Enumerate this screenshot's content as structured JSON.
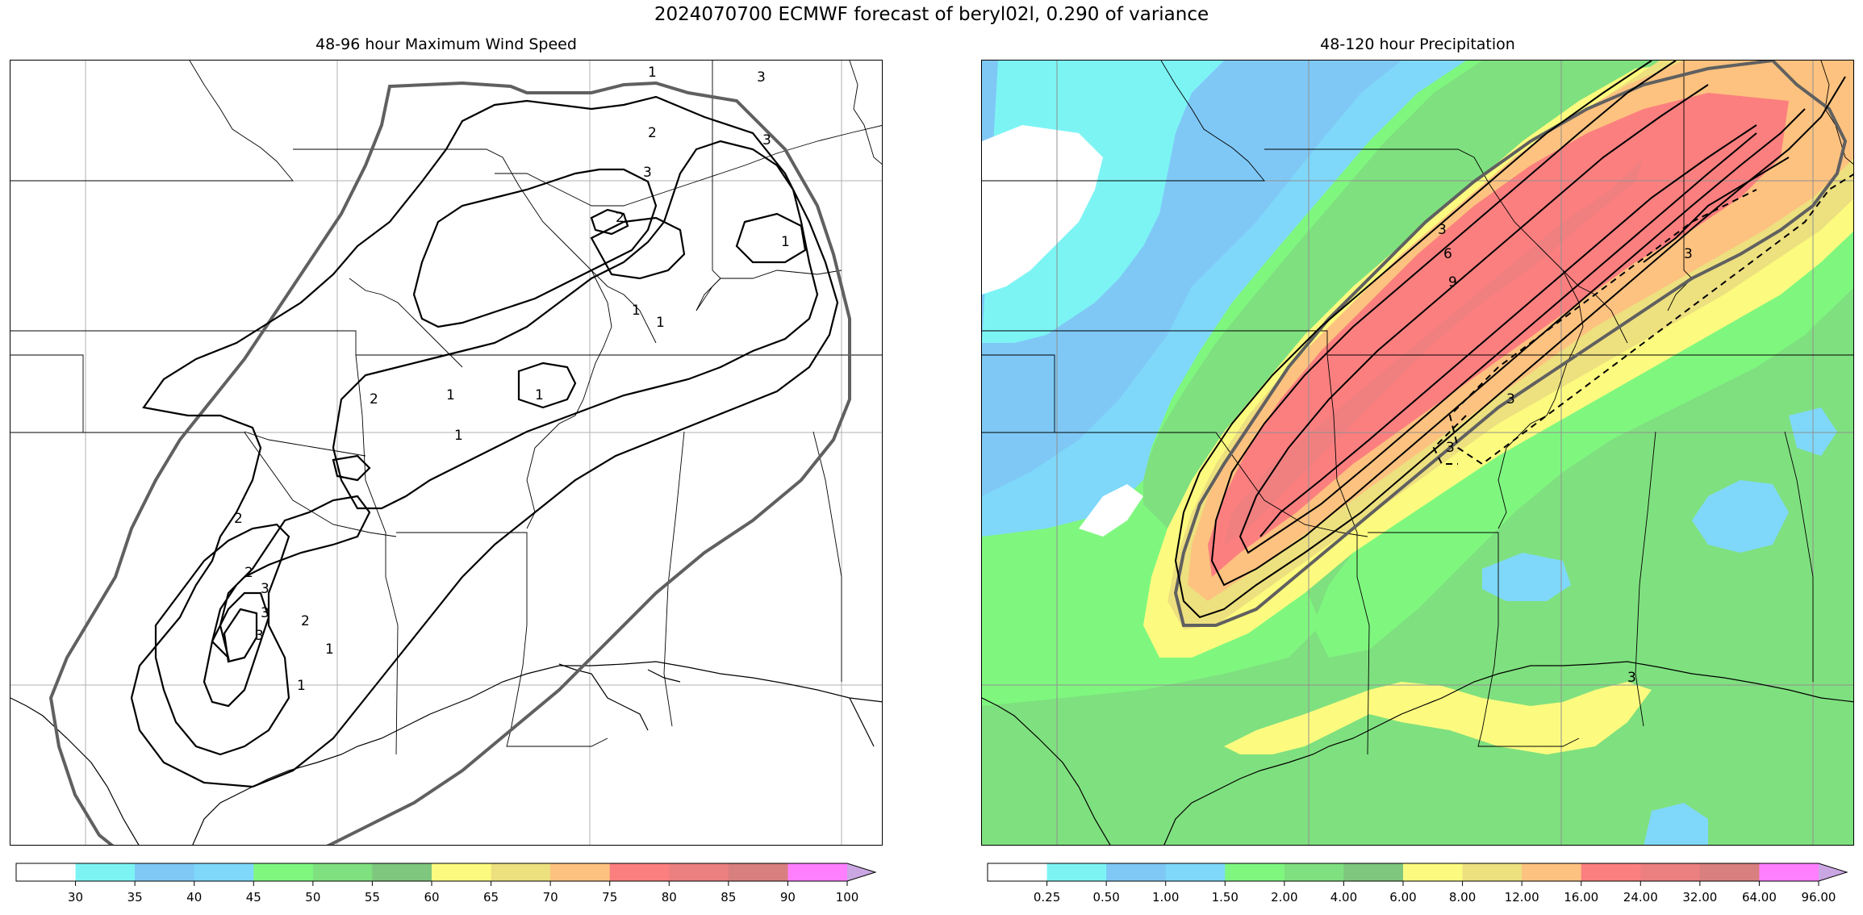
{
  "suptitle": "2024070700 ECMWF forecast of beryl02l, 0.290 of variance",
  "left_panel": {
    "title": "48-96 hour Maximum Wind Speed",
    "contour_labels": [
      "1",
      "1",
      "1",
      "1",
      "1",
      "1",
      "1",
      "1",
      "1",
      "2",
      "2",
      "2",
      "2",
      "2",
      "2",
      "3",
      "3",
      "3",
      "3",
      "3",
      "3"
    ],
    "colorbar": {
      "ticks": [
        "30",
        "35",
        "40",
        "45",
        "50",
        "55",
        "60",
        "65",
        "70",
        "75",
        "80",
        "85",
        "90",
        "100"
      ],
      "colors": [
        "#ffffff",
        "#7df4f4",
        "#7fc8f6",
        "#7fd8fa",
        "#7ff77f",
        "#7fe07f",
        "#7fc67f",
        "#fdfb7f",
        "#ede07f",
        "#fdc27f",
        "#fc7f7f",
        "#ec7f7f",
        "#d87f7f",
        "#ff7fff",
        "#caa6e2"
      ]
    }
  },
  "right_panel": {
    "title": "48-120 hour Precipitation",
    "contour_labels": [
      "3",
      "6",
      "9",
      "3",
      "3",
      "3",
      "3"
    ],
    "colorbar": {
      "ticks": [
        "0.25",
        "0.50",
        "1.00",
        "1.50",
        "2.00",
        "4.00",
        "6.00",
        "8.00",
        "12.00",
        "16.00",
        "24.00",
        "32.00",
        "64.00",
        "96.00"
      ],
      "colors": [
        "#ffffff",
        "#7df4f4",
        "#7fc8f6",
        "#7fd8fa",
        "#7ff77f",
        "#7fe07f",
        "#7fc67f",
        "#fdfb7f",
        "#ede07f",
        "#fdc27f",
        "#fc7f7f",
        "#ec7f7f",
        "#d87f7f",
        "#ff7fff",
        "#caa6e2"
      ]
    }
  }
}
